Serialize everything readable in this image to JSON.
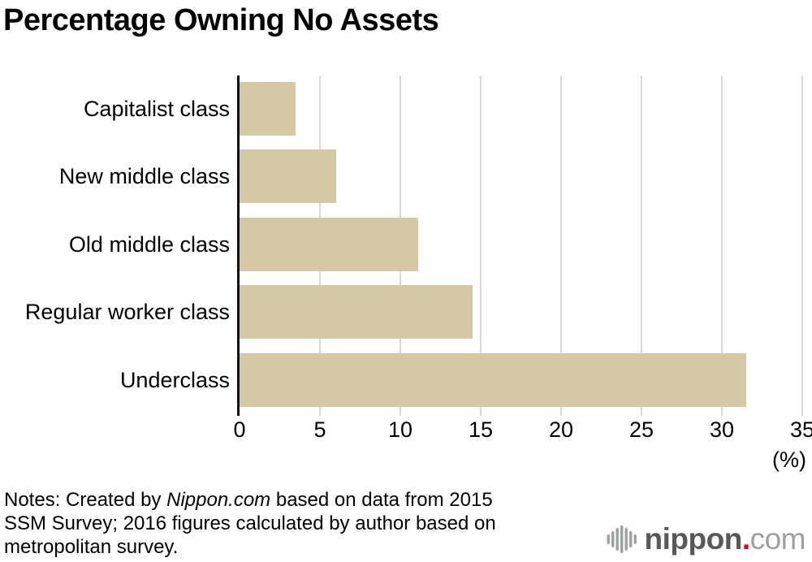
{
  "chart_data": {
    "type": "bar",
    "orientation": "horizontal",
    "title": "Percentage Owning No Assets",
    "categories": [
      "Capitalist class",
      "New middle class",
      "Old middle class",
      "Regular worker class",
      "Underclass"
    ],
    "values": [
      3.5,
      6.0,
      11.1,
      14.5,
      31.5
    ],
    "xlabel": "(%)",
    "xlim": [
      0,
      35
    ],
    "xticks": [
      0,
      5,
      10,
      15,
      20,
      25,
      30,
      35
    ],
    "grid": true,
    "legend": false,
    "bar_color": "#d4c9a4",
    "gridline_color": "#d9d9d9",
    "axis_color": "#111111"
  },
  "notes": {
    "line1_prefix": "Notes: Created by ",
    "line1_italic": "Nippon.com",
    "line1_suffix": " based on data from 2015",
    "line2": "SSM Survey; 2016 figures calculated by author based on",
    "line3": "metropolitan survey."
  },
  "logo": {
    "name": "nippon",
    "dot": ".",
    "tld": "com",
    "icon": "soundwave-bars-icon",
    "brand_dark": "#595757",
    "brand_red": "#e60012",
    "brand_light": "#9fa0a0"
  }
}
